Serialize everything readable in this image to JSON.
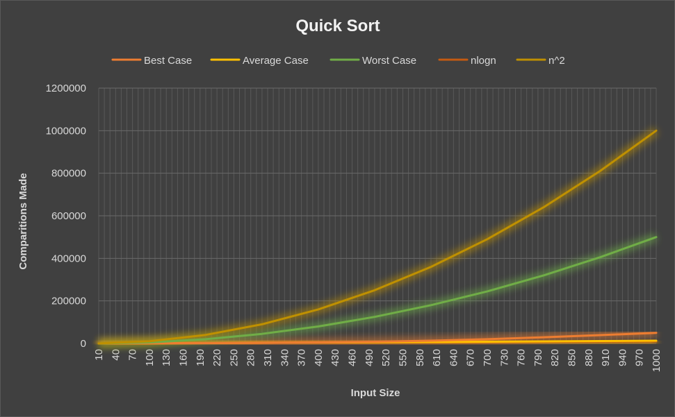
{
  "chart_data": {
    "type": "line",
    "title": "Quick Sort",
    "xlabel": "Input Size",
    "ylabel": "Comparitions Made",
    "ylim": [
      0,
      1200000
    ],
    "yticks": [
      0,
      200000,
      400000,
      600000,
      800000,
      1000000,
      1200000
    ],
    "xlim": [
      10,
      1000
    ],
    "xticks": [
      10,
      40,
      70,
      100,
      130,
      160,
      190,
      220,
      250,
      280,
      310,
      340,
      370,
      400,
      430,
      460,
      490,
      520,
      550,
      580,
      610,
      640,
      670,
      700,
      730,
      760,
      790,
      820,
      850,
      880,
      910,
      940,
      970,
      1000
    ],
    "grid": true,
    "legend_position": "top",
    "x": [
      10,
      100,
      200,
      300,
      400,
      500,
      600,
      700,
      800,
      900,
      1000
    ],
    "series": [
      {
        "name": "Best Case",
        "color": "#ed7d31",
        "values": [
          20,
          500,
          1500,
          2800,
          5000,
          8000,
          13000,
          20000,
          29000,
          39000,
          50000
        ]
      },
      {
        "name": "Average Case",
        "color": "#ffc000",
        "values": [
          30,
          700,
          1700,
          2800,
          4000,
          5400,
          6800,
          8300,
          9800,
          11500,
          13000
        ]
      },
      {
        "name": "Worst Case",
        "color": "#70ad47",
        "values": [
          50,
          5000,
          20000,
          45000,
          80000,
          125000,
          180000,
          245000,
          320000,
          405000,
          500000
        ]
      },
      {
        "name": "nlogn",
        "color": "#c55a11",
        "values": [
          33,
          664,
          1529,
          2469,
          3458,
          4483,
          5537,
          6615,
          7715,
          8832,
          9966
        ]
      },
      {
        "name": "n^2",
        "color": "#bf9000",
        "values": [
          100,
          10000,
          40000,
          90000,
          160000,
          250000,
          360000,
          490000,
          640000,
          810000,
          1000000
        ]
      }
    ]
  }
}
